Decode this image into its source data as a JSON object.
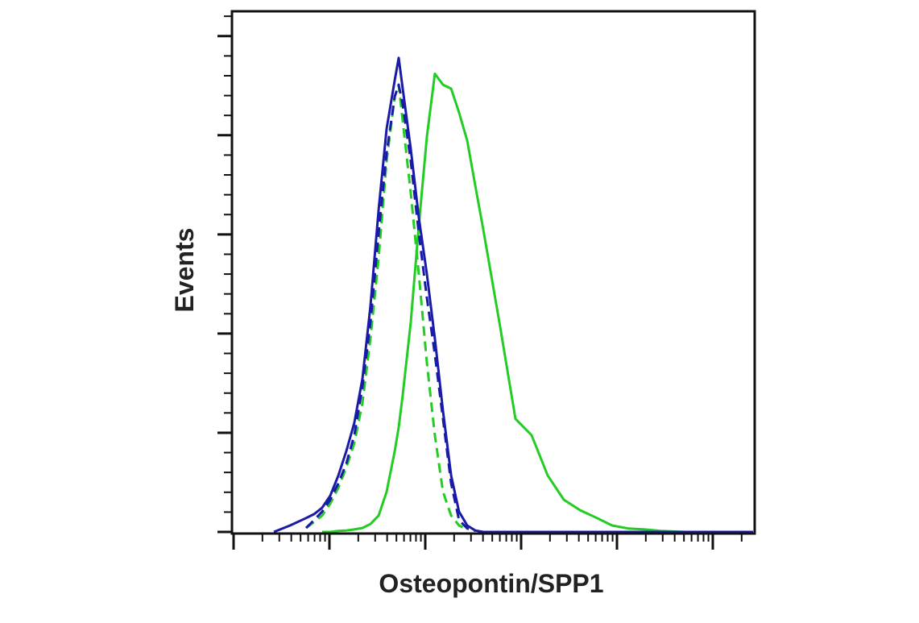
{
  "chart_data": {
    "type": "line",
    "xlabel": "Osteopontin/SPP1",
    "ylabel": "Events",
    "xscale": "log",
    "xlim": [
      1,
      280000
    ],
    "ylim": [
      0,
      105
    ],
    "xticks": [
      1,
      10,
      100,
      1000,
      10000,
      100000
    ],
    "yticks": [
      0,
      20,
      40,
      60,
      80,
      100
    ],
    "x_minor_ticks": [
      2,
      3,
      4,
      5,
      6,
      7,
      8,
      9,
      20,
      30,
      40,
      50,
      60,
      70,
      80,
      90,
      200,
      300,
      400,
      500,
      600,
      700,
      800,
      900,
      2000,
      3000,
      4000,
      5000,
      6000,
      7000,
      8000,
      9000,
      20000,
      30000,
      40000,
      50000,
      60000,
      70000,
      80000,
      90000,
      200000
    ],
    "y_minor_ticks": [
      4,
      8,
      12,
      16,
      24,
      28,
      32,
      36,
      44,
      48,
      52,
      56,
      64,
      68,
      72,
      76,
      84,
      88,
      92,
      96,
      104
    ],
    "tick_labels": false,
    "x": [
      2.63,
      3.88,
      5.71,
      6.92,
      8.4,
      10.2,
      12.4,
      15,
      18.2,
      22.1,
      26.8,
      32.6,
      39.5,
      48,
      52.8,
      58.2,
      70.6,
      85.7,
      104,
      126,
      153,
      186,
      225,
      274,
      332,
      403,
      593,
      873,
      1285,
      1892,
      2786,
      4102,
      6050,
      8910,
      13120,
      19320,
      28440,
      50800,
      133600,
      263000
    ],
    "series": [
      {
        "color": "#22cc22",
        "dashed": false,
        "values": [
          null,
          null,
          null,
          null,
          0,
          0,
          0.2,
          0.3,
          0.5,
          0.8,
          1.6,
          3.3,
          8.1,
          16.3,
          21.1,
          27.6,
          42.3,
          61.8,
          79.7,
          92.4,
          90.2,
          89.4,
          84.6,
          78.9,
          69.9,
          61.0,
          42.3,
          22.8,
          19.5,
          11.4,
          6.5,
          4.4,
          2.9,
          1.3,
          0.7,
          0.5,
          0.2,
          0,
          0,
          0
        ]
      },
      {
        "color": "#22cc22",
        "dashed": true,
        "values": [
          null,
          null,
          0.8,
          2.0,
          3.3,
          5.7,
          8.9,
          13.0,
          17.9,
          26.0,
          39.0,
          55.3,
          74.8,
          87.8,
          90.2,
          82.9,
          68.3,
          52.0,
          34.1,
          19.5,
          8.1,
          3.3,
          1.3,
          0.5,
          null,
          null,
          null,
          null,
          null,
          null,
          null,
          null,
          null,
          null,
          null,
          null,
          null,
          null,
          null,
          null
        ]
      },
      {
        "color": "#1a1aa8",
        "dashed": true,
        "values": [
          null,
          null,
          0.8,
          2.4,
          4.1,
          6.5,
          9.8,
          13.8,
          19.5,
          29.3,
          42.3,
          60.2,
          76.4,
          87.8,
          90.2,
          86.2,
          74.8,
          60.2,
          47.2,
          35.8,
          22.8,
          9.8,
          2.4,
          0.7,
          0.2,
          null,
          null,
          null,
          null,
          null,
          null,
          null,
          null,
          null,
          null,
          null,
          null,
          null,
          null,
          null
        ]
      },
      {
        "color": "#1a1aa8",
        "dashed": false,
        "values": [
          0,
          1.3,
          2.8,
          3.6,
          4.9,
          7.3,
          11.4,
          16.3,
          22.0,
          30.9,
          45.5,
          65.0,
          81.3,
          91.1,
          95.6,
          89.4,
          77.2,
          63.4,
          52.0,
          39.0,
          24.4,
          11.4,
          4.1,
          1.3,
          0.3,
          0,
          0,
          0,
          0,
          0,
          0,
          0,
          0,
          0,
          0,
          0,
          0,
          0,
          0,
          0
        ]
      }
    ]
  }
}
